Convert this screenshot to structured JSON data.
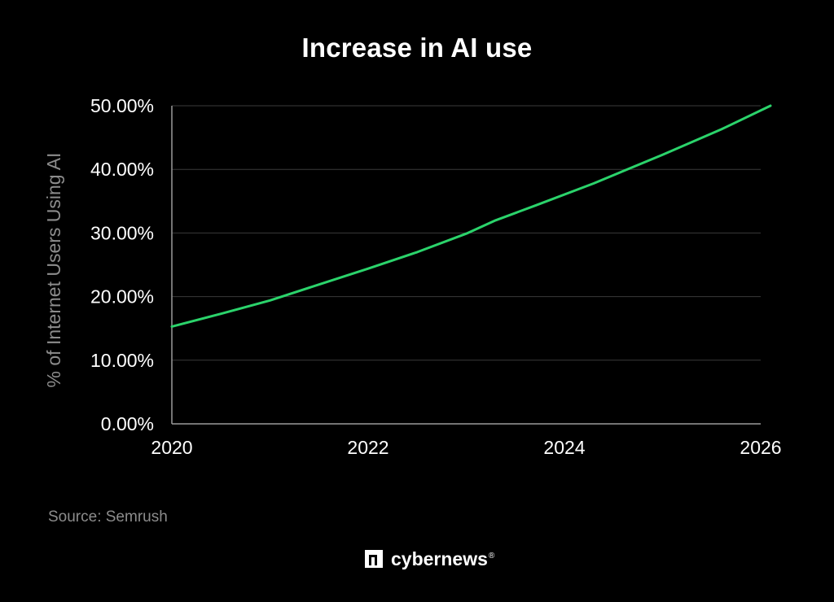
{
  "chart_data": {
    "type": "line",
    "title": "Increase in AI use",
    "xlabel": "",
    "ylabel": "% of Internet Users Using AI",
    "x_ticks": [
      "2020",
      "2022",
      "2024",
      "2026"
    ],
    "y_ticks": [
      "0.00%",
      "10.00%",
      "20.00%",
      "30.00%",
      "40.00%",
      "50.00%"
    ],
    "xlim": [
      2020,
      2026
    ],
    "ylim": [
      0,
      50
    ],
    "grid": "horizontal",
    "series": [
      {
        "color": "#2bd36b",
        "x": [
          2020.0,
          2020.5,
          2021.0,
          2021.5,
          2022.0,
          2022.5,
          2023.0,
          2023.3,
          2023.7,
          2024.3,
          2025.0,
          2025.6,
          2026.1
        ],
        "y": [
          15.3,
          17.3,
          19.4,
          21.9,
          24.4,
          27.0,
          29.9,
          32.0,
          34.3,
          37.8,
          42.3,
          46.3,
          50.0
        ]
      }
    ]
  },
  "source": "Source: Semrush",
  "brand": {
    "name": "cybernews",
    "reg": "®"
  }
}
